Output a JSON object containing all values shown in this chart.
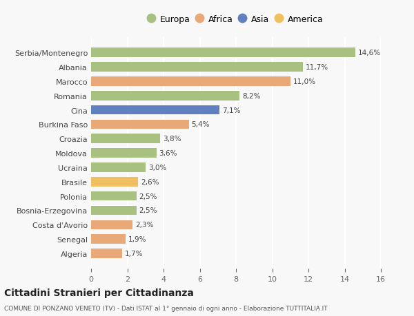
{
  "categories": [
    "Algeria",
    "Senegal",
    "Costa d'Avorio",
    "Bosnia-Erzegovina",
    "Polonia",
    "Brasile",
    "Ucraina",
    "Moldova",
    "Croazia",
    "Burkina Faso",
    "Cina",
    "Romania",
    "Marocco",
    "Albania",
    "Serbia/Montenegro"
  ],
  "values": [
    1.7,
    1.9,
    2.3,
    2.5,
    2.5,
    2.6,
    3.0,
    3.6,
    3.8,
    5.4,
    7.1,
    8.2,
    11.0,
    11.7,
    14.6
  ],
  "continents": [
    "Africa",
    "Africa",
    "Africa",
    "Europa",
    "Europa",
    "America",
    "Europa",
    "Europa",
    "Europa",
    "Africa",
    "Asia",
    "Europa",
    "Africa",
    "Europa",
    "Europa"
  ],
  "colors": {
    "Europa": "#a8c080",
    "Africa": "#e8a878",
    "Asia": "#6080c0",
    "America": "#f0c060"
  },
  "legend_order": [
    "Europa",
    "Africa",
    "Asia",
    "America"
  ],
  "xlim": [
    0,
    16
  ],
  "xticks": [
    0,
    2,
    4,
    6,
    8,
    10,
    12,
    14,
    16
  ],
  "title": "Cittadini Stranieri per Cittadinanza",
  "subtitle": "COMUNE DI PONZANO VENETO (TV) - Dati ISTAT al 1° gennaio di ogni anno - Elaborazione TUTTITALIA.IT",
  "background_color": "#f8f8f8",
  "grid_color": "#ffffff",
  "bar_height": 0.65
}
